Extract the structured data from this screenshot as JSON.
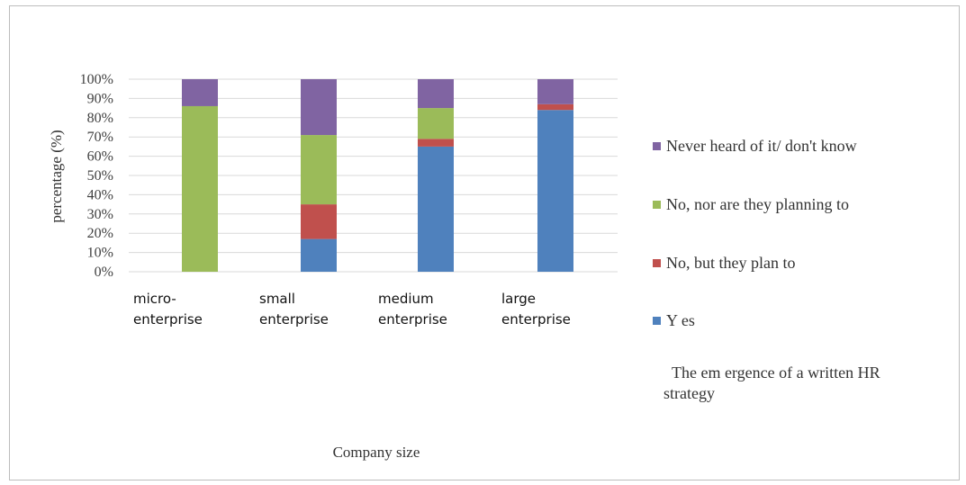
{
  "chart_data": {
    "type": "bar",
    "stacked": true,
    "percent_stacked": true,
    "categories": [
      [
        "micro-",
        "enterprise"
      ],
      [
        "small",
        "enterprise"
      ],
      [
        "medium",
        "enterprise"
      ],
      [
        "large",
        "enterprise"
      ]
    ],
    "series": [
      {
        "name": "Y es",
        "color": "#4f81bd",
        "values": [
          0,
          17,
          65,
          84
        ]
      },
      {
        "name": "No, but they plan to",
        "color": "#c0504d",
        "values": [
          0,
          18,
          4,
          3
        ]
      },
      {
        "name": "No, nor are they planning to",
        "color": "#9bbb59",
        "values": [
          86,
          36,
          16,
          0
        ]
      },
      {
        "name": "Never heard of it/ don't know",
        "color": "#8064a2",
        "values": [
          14,
          29,
          15,
          13
        ]
      }
    ],
    "ylim": [
      0,
      100
    ],
    "yticks": [
      "0%",
      "10%",
      "20%",
      "30%",
      "40%",
      "50%",
      "60%",
      "70%",
      "80%",
      "90%",
      "100%"
    ],
    "ylabel": "percentage (%)",
    "xlabel": "Company size",
    "legend_title": [
      "The em ergence of a written HR",
      "strategy"
    ],
    "legend_position": "right",
    "grid": true
  }
}
